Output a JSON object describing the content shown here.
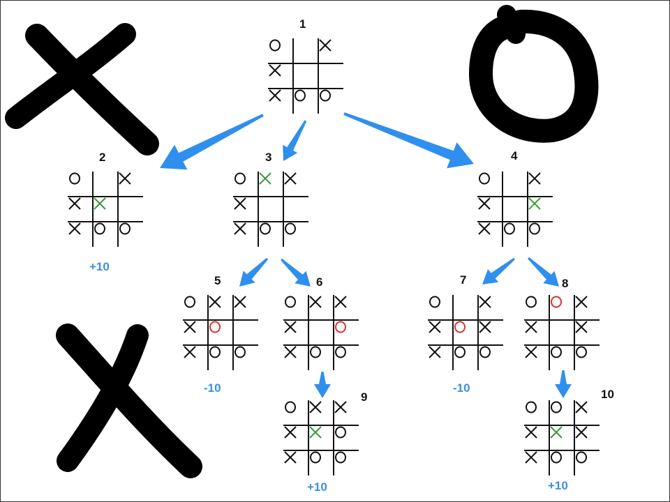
{
  "colors": {
    "brush": "#000000",
    "grid": "#111111",
    "mark": "#111111",
    "highlight_x": "#3a9a3a",
    "highlight_o": "#d8342a",
    "arrow": "#2f8fee",
    "score": "#3d8fe0"
  },
  "decorations": [
    {
      "name": "big-x-top-left-icon",
      "symbol": "X"
    },
    {
      "name": "big-o-top-right-icon",
      "symbol": "O"
    },
    {
      "name": "big-x-bottom-left-icon",
      "symbol": "X"
    }
  ],
  "nodes": [
    {
      "id": "1",
      "label": "1",
      "score": "",
      "cells": [
        "O",
        "",
        "X",
        "X",
        "",
        "",
        "X",
        "O",
        "O"
      ],
      "highlight": []
    },
    {
      "id": "2",
      "label": "2",
      "score": "+10",
      "cells": [
        "O",
        "",
        "X",
        "X",
        "X",
        "",
        "X",
        "O",
        "O"
      ],
      "highlight": [
        4
      ]
    },
    {
      "id": "3",
      "label": "3",
      "score": "",
      "cells": [
        "O",
        "X",
        "X",
        "X",
        "",
        "",
        "X",
        "O",
        "O"
      ],
      "highlight": [
        1
      ]
    },
    {
      "id": "4",
      "label": "4",
      "score": "",
      "cells": [
        "O",
        "",
        "X",
        "X",
        "",
        "X",
        "X",
        "O",
        "O"
      ],
      "highlight": [
        5
      ]
    },
    {
      "id": "5",
      "label": "5",
      "score": "-10",
      "cells": [
        "O",
        "X",
        "X",
        "X",
        "O",
        "",
        "X",
        "O",
        "O"
      ],
      "highlight": [
        4
      ]
    },
    {
      "id": "6",
      "label": "6",
      "score": "",
      "cells": [
        "O",
        "X",
        "X",
        "X",
        "",
        "O",
        "X",
        "O",
        "O"
      ],
      "highlight": [
        5
      ]
    },
    {
      "id": "7",
      "label": "7",
      "score": "-10",
      "cells": [
        "O",
        "",
        "X",
        "X",
        "O",
        "X",
        "X",
        "O",
        "O"
      ],
      "highlight": [
        4
      ]
    },
    {
      "id": "8",
      "label": "8",
      "score": "",
      "cells": [
        "O",
        "O",
        "X",
        "X",
        "",
        "X",
        "X",
        "O",
        "O"
      ],
      "highlight": [
        1
      ]
    },
    {
      "id": "9",
      "label": "9",
      "score": "+10",
      "cells": [
        "O",
        "X",
        "X",
        "X",
        "X",
        "O",
        "X",
        "O",
        "O"
      ],
      "highlight": [
        4
      ]
    },
    {
      "id": "10",
      "label": "10",
      "score": "+10",
      "cells": [
        "O",
        "O",
        "X",
        "X",
        "X",
        "X",
        "X",
        "O",
        "O"
      ],
      "highlight": [
        4
      ]
    }
  ],
  "edges": [
    {
      "from": "1",
      "to": "2"
    },
    {
      "from": "1",
      "to": "3"
    },
    {
      "from": "1",
      "to": "4"
    },
    {
      "from": "3",
      "to": "5"
    },
    {
      "from": "3",
      "to": "6"
    },
    {
      "from": "4",
      "to": "7"
    },
    {
      "from": "4",
      "to": "8"
    },
    {
      "from": "6",
      "to": "9"
    },
    {
      "from": "8",
      "to": "10"
    }
  ]
}
